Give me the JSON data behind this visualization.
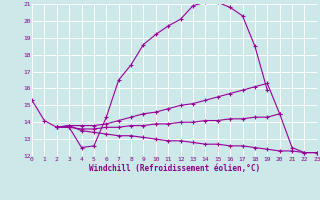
{
  "xlabel": "Windchill (Refroidissement éolien,°C)",
  "background_color": "#cce8e8",
  "line_color": "#990099",
  "grid_color": "#ffffff",
  "xmin": 0,
  "xmax": 23,
  "ymin": 12,
  "ymax": 21,
  "lines": [
    {
      "x": [
        0,
        1,
        2,
        3,
        4,
        5,
        6,
        7,
        8,
        9,
        10,
        11,
        12,
        13,
        14,
        15,
        16,
        17,
        18,
        19
      ],
      "y": [
        15.3,
        14.1,
        13.7,
        13.7,
        12.5,
        12.6,
        14.3,
        16.5,
        17.4,
        18.6,
        19.2,
        19.7,
        20.1,
        20.9,
        21.1,
        21.1,
        20.8,
        20.3,
        18.5,
        15.9
      ]
    },
    {
      "x": [
        2,
        3,
        4,
        5,
        6,
        7,
        8,
        9,
        10,
        11,
        12,
        13,
        14,
        15,
        16,
        17,
        18,
        19,
        20
      ],
      "y": [
        13.7,
        13.8,
        13.8,
        13.8,
        13.9,
        14.1,
        14.3,
        14.5,
        14.6,
        14.8,
        15.0,
        15.1,
        15.3,
        15.5,
        15.7,
        15.9,
        16.1,
        16.3,
        14.5
      ]
    },
    {
      "x": [
        2,
        3,
        4,
        5,
        6,
        7,
        8,
        9,
        10,
        11,
        12,
        13,
        14,
        15,
        16,
        17,
        18,
        19,
        20,
        21,
        22,
        23
      ],
      "y": [
        13.7,
        13.7,
        13.6,
        13.6,
        13.7,
        13.7,
        13.8,
        13.8,
        13.9,
        13.9,
        14.0,
        14.0,
        14.1,
        14.1,
        14.2,
        14.2,
        14.3,
        14.3,
        14.5,
        12.5,
        12.2,
        12.2
      ]
    },
    {
      "x": [
        2,
        3,
        4,
        5,
        6,
        7,
        8,
        9,
        10,
        11,
        12,
        13,
        14,
        15,
        16,
        17,
        18,
        19,
        20,
        21,
        22,
        23
      ],
      "y": [
        13.7,
        13.8,
        13.5,
        13.4,
        13.3,
        13.2,
        13.2,
        13.1,
        13.0,
        12.9,
        12.9,
        12.8,
        12.7,
        12.7,
        12.6,
        12.6,
        12.5,
        12.4,
        12.3,
        12.3,
        12.2,
        12.2
      ]
    }
  ]
}
